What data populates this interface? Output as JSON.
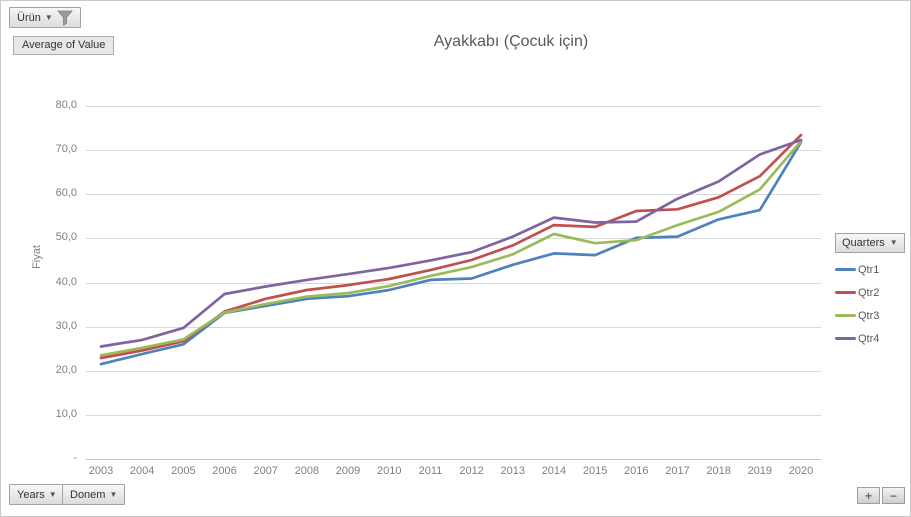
{
  "filter_button": {
    "label": "Ürün",
    "icon": "funnel-icon"
  },
  "value_button": {
    "label": "Average of Value"
  },
  "axis_field_buttons": {
    "years_label": "Years",
    "donem_label": "Donem"
  },
  "legend": {
    "button_label": "Quarters",
    "items": [
      {
        "label": "Qtr1",
        "color": "#4F81BD"
      },
      {
        "label": "Qtr2",
        "color": "#C0504D"
      },
      {
        "label": "Qtr3",
        "color": "#9BBB59"
      },
      {
        "label": "Qtr4",
        "color": "#8064A2"
      }
    ]
  },
  "zoom_controls": {
    "plus": "+",
    "minus": "−"
  },
  "colors": {
    "title_text": "#595959",
    "axis_text": "#808080",
    "gridline": "#D9D9D9",
    "axis_line": "#C6C6C6"
  },
  "chart_data": {
    "type": "line",
    "title": "Ayakkabı (Çocuk için)",
    "xlabel": "",
    "ylabel": "Fiyat",
    "ylim": [
      0,
      80
    ],
    "grid": true,
    "legend_position": "right",
    "ytick_labels_top_down": [
      "80,0",
      "70,0",
      "60,0",
      "50,0",
      "40,0",
      "30,0",
      "20,0",
      "10,0",
      "-"
    ],
    "categories": [
      "2003",
      "2004",
      "2005",
      "2006",
      "2007",
      "2008",
      "2009",
      "2010",
      "2011",
      "2012",
      "2013",
      "2014",
      "2015",
      "2016",
      "2017",
      "2018",
      "2019",
      "2020"
    ],
    "series": [
      {
        "name": "Qtr1",
        "color": "#4F81BD",
        "values": [
          21.5,
          23.8,
          26.0,
          33.1,
          34.7,
          36.3,
          36.9,
          38.3,
          40.6,
          40.9,
          44.0,
          46.6,
          46.2,
          50.1,
          50.4,
          54.3,
          56.4,
          71.8
        ]
      },
      {
        "name": "Qtr2",
        "color": "#C0504D",
        "values": [
          22.9,
          24.6,
          26.7,
          33.4,
          36.3,
          38.3,
          39.4,
          40.8,
          42.8,
          45.1,
          48.4,
          53.0,
          52.6,
          56.2,
          56.6,
          59.3,
          64.1,
          73.4
        ]
      },
      {
        "name": "Qtr3",
        "color": "#9BBB59",
        "values": [
          23.5,
          25.2,
          27.1,
          33.2,
          35.1,
          36.8,
          37.6,
          39.2,
          41.5,
          43.5,
          46.4,
          51.0,
          48.9,
          49.6,
          53.0,
          56.0,
          61.1,
          72.0
        ]
      },
      {
        "name": "Qtr4",
        "color": "#8064A2",
        "values": [
          25.5,
          27.0,
          29.7,
          37.4,
          39.1,
          40.6,
          41.9,
          43.3,
          45.0,
          46.9,
          50.4,
          54.7,
          53.6,
          53.8,
          59.0,
          62.9,
          69.0,
          72.3
        ]
      }
    ]
  }
}
